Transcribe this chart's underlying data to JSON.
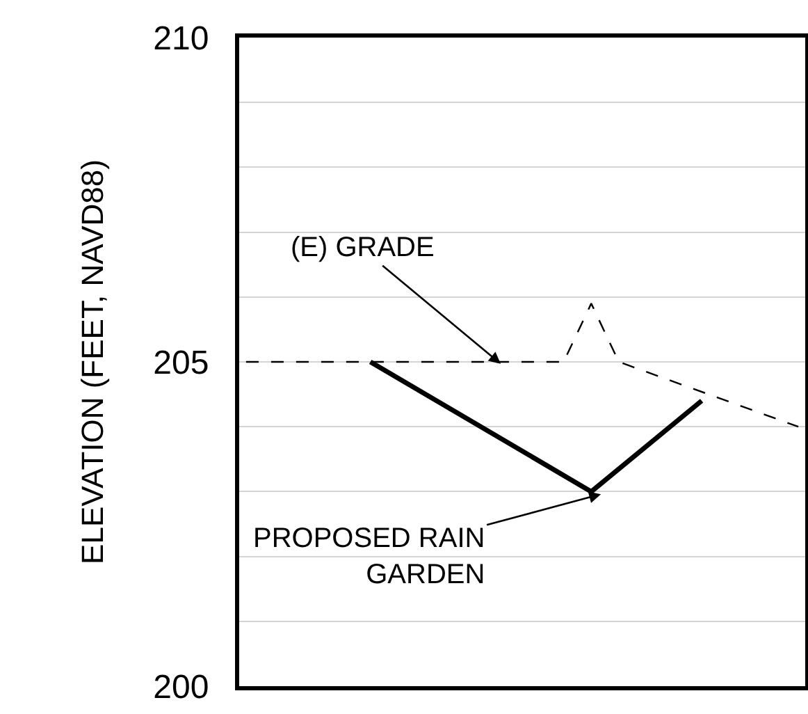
{
  "chart_data": {
    "type": "line",
    "ylabel": "ELEVATION (FEET, NAVD88)",
    "categories": [
      null,
      null,
      null,
      null,
      null,
      null,
      null,
      null,
      null,
      null,
      null,
      null,
      null,
      null,
      null,
      null,
      null,
      null,
      null,
      null,
      null,
      null,
      null,
      null,
      null,
      null,
      null,
      null,
      null,
      null,
      null,
      null,
      null,
      null,
      null,
      null,
      null,
      null,
      null,
      null,
      null
    ],
    "ylim": [
      200,
      210
    ],
    "yticks": [
      200,
      {
        "value": 201,
        "label": null
      },
      {
        "value": 202,
        "label": null
      },
      {
        "value": 203,
        "label": null
      },
      {
        "value": 204,
        "label": null
      },
      205,
      {
        "value": 206,
        "label": null
      },
      {
        "value": 207,
        "label": null
      },
      {
        "value": 208,
        "label": null
      },
      {
        "value": 209,
        "label": null
      },
      210
    ],
    "grid": "y",
    "tick_labels": "y",
    "marker": "none",
    "series": [
      {
        "color": "#000000",
        "line_style": "dashed",
        "values": [
          205.0,
          null,
          null,
          null,
          null,
          null,
          null,
          null,
          null,
          null,
          null,
          null,
          null,
          null,
          null,
          null,
          null,
          null,
          null,
          null,
          null,
          null,
          null,
          205.0,
          null,
          205.9,
          null,
          205.0,
          null,
          null,
          null,
          null,
          null,
          null,
          null,
          null,
          null,
          null,
          null,
          null,
          204.0
        ]
      },
      {
        "color": "#000000",
        "line_style": "solid",
        "values": [
          null,
          null,
          null,
          null,
          null,
          null,
          null,
          null,
          null,
          205.0,
          null,
          null,
          null,
          null,
          null,
          null,
          null,
          null,
          null,
          null,
          null,
          null,
          null,
          null,
          null,
          203.0,
          null,
          null,
          null,
          null,
          null,
          null,
          null,
          204.4,
          null,
          null,
          null,
          null,
          null,
          null,
          null
        ]
      }
    ],
    "annotations": [
      "(E) GRADE",
      "PROPOSED RAIN\nGARDEN"
    ]
  }
}
